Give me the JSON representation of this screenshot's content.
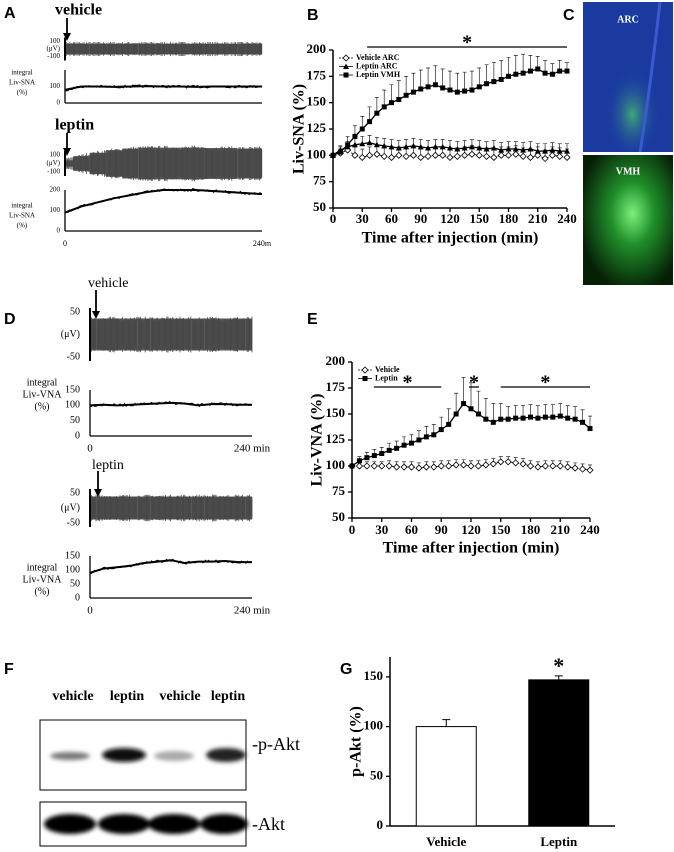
{
  "panel_labels": [
    "A",
    "B",
    "C",
    "D",
    "E",
    "F",
    "G"
  ],
  "trace_panels": [
    {
      "time": [
        0,
        20,
        40,
        60,
        80,
        100,
        120,
        140,
        160,
        180,
        200,
        220,
        240
      ],
      "traces": [
        {
          "label": "vehicle",
          "raw_ticks": [
            100,
            -100
          ],
          "raw_unit": "(μV)",
          "raw_envelope": [
            95,
            95,
            95,
            95,
            95,
            95,
            95,
            95,
            95,
            95,
            95,
            95,
            95
          ],
          "integral_label": [
            "integral",
            "Liv-SNA",
            "(%)"
          ],
          "integral_ylim": [
            0,
            200
          ],
          "integral_ticks": [
            100,
            0
          ],
          "integral_values": [
            80,
            100,
            100,
            98,
            100,
            102,
            100,
            100,
            98,
            100,
            100,
            100,
            100
          ]
        },
        {
          "label": "leptin",
          "raw_ticks": [
            100,
            -100
          ],
          "raw_unit": "(μV)",
          "raw_envelope": [
            60,
            110,
            150,
            180,
            200,
            210,
            210,
            210,
            210,
            205,
            205,
            200,
            200
          ],
          "integral_label": [
            "integral",
            "Liv-SNA",
            "(%)"
          ],
          "integral_ylim": [
            0,
            200
          ],
          "integral_ticks": [
            200,
            100,
            0
          ],
          "integral_values": [
            90,
            120,
            140,
            160,
            175,
            190,
            200,
            200,
            200,
            195,
            190,
            185,
            180
          ],
          "x_labels": [
            "0",
            "240m"
          ]
        }
      ]
    },
    {
      "time": [
        0,
        20,
        40,
        60,
        80,
        100,
        120,
        140,
        160,
        180,
        200,
        220,
        240
      ],
      "traces": [
        {
          "label": "vehicle",
          "raw_ticks": [
            50,
            -50
          ],
          "raw_unit": "(μV)",
          "raw_envelope": [
            40,
            40,
            40,
            40,
            40,
            40,
            40,
            40,
            40,
            40,
            40,
            40,
            40
          ],
          "integral_label": [
            "integral",
            "Liv-VNA",
            "(%)"
          ],
          "integral_ylim": [
            0,
            150
          ],
          "integral_ticks": [
            150,
            100,
            50,
            0
          ],
          "integral_values": [
            100,
            102,
            100,
            102,
            104,
            106,
            108,
            106,
            100,
            104,
            104,
            102,
            102
          ],
          "x_labels": [
            "0",
            "240 min"
          ]
        },
        {
          "label": "leptin",
          "raw_ticks": [
            50,
            -50
          ],
          "raw_unit": "(μV)",
          "raw_envelope": [
            45,
            45,
            45,
            45,
            45,
            45,
            45,
            45,
            45,
            45,
            45,
            45,
            45
          ],
          "integral_label": [
            "integral",
            "Liv-VNA",
            "(%)"
          ],
          "integral_ylim": [
            0,
            150
          ],
          "integral_ticks": [
            150,
            100,
            50,
            0
          ],
          "integral_values": [
            90,
            105,
            110,
            115,
            125,
            130,
            135,
            125,
            130,
            130,
            132,
            128,
            128
          ],
          "x_labels": [
            "0",
            "240 min"
          ]
        }
      ]
    }
  ],
  "image_panel": {
    "labels": [
      "ARC",
      "VMH"
    ]
  },
  "blot": {
    "lanes": [
      "vehicle",
      "leptin",
      "vehicle",
      "leptin"
    ],
    "bands": [
      "-p-Akt",
      "-Akt"
    ]
  },
  "chart_data": [
    {
      "type": "line",
      "ylabel": "Liv-SNA (%)",
      "xlabel": "Time after injection (min)",
      "x": [
        0,
        7.5,
        15,
        22.5,
        30,
        37.5,
        45,
        52.5,
        60,
        67.5,
        75,
        82.5,
        90,
        97.5,
        105,
        112.5,
        120,
        127.5,
        135,
        142.5,
        150,
        157.5,
        165,
        172.5,
        180,
        187.5,
        195,
        202.5,
        210,
        217.5,
        225,
        232.5,
        240
      ],
      "xlim": [
        0,
        240
      ],
      "xticks": [
        0,
        30,
        60,
        90,
        120,
        150,
        180,
        210,
        240
      ],
      "ylim": [
        50,
        200
      ],
      "yticks": [
        50,
        75,
        100,
        125,
        150,
        175,
        200
      ],
      "legend": "upper left",
      "series": [
        {
          "name": "Vehicle ARC",
          "color": "#000000",
          "marker": "open-diamond",
          "dashed": true,
          "values": [
            100,
            102,
            105,
            100,
            98,
            100,
            101,
            99,
            98,
            100,
            99,
            100,
            98,
            99,
            100,
            100,
            98,
            99,
            100,
            101,
            100,
            99,
            98,
            100,
            100,
            101,
            99,
            98,
            100,
            97,
            100,
            99,
            98
          ],
          "errors": [
            0,
            4,
            6,
            8,
            8,
            8,
            8,
            8,
            8,
            8,
            8,
            8,
            8,
            8,
            8,
            8,
            8,
            8,
            8,
            8,
            8,
            8,
            8,
            8,
            8,
            8,
            8,
            8,
            8,
            8,
            8,
            8,
            8
          ]
        },
        {
          "name": "Leptin ARC",
          "color": "#000000",
          "marker": "triangle",
          "dashed": false,
          "values": [
            100,
            105,
            108,
            110,
            111,
            112,
            110,
            109,
            108,
            107,
            108,
            109,
            108,
            107,
            108,
            108,
            107,
            106,
            107,
            108,
            107,
            106,
            107,
            105,
            106,
            106,
            105,
            106,
            104,
            104,
            105,
            104,
            104
          ],
          "errors": [
            0,
            4,
            5,
            6,
            7,
            7,
            7,
            7,
            7,
            7,
            7,
            7,
            7,
            7,
            7,
            7,
            7,
            7,
            7,
            7,
            7,
            7,
            7,
            7,
            7,
            7,
            7,
            7,
            7,
            7,
            7,
            7,
            7
          ]
        },
        {
          "name": "Leptin VMH",
          "color": "#000000",
          "marker": "square",
          "dashed": false,
          "values": [
            100,
            103,
            110,
            118,
            125,
            132,
            140,
            146,
            150,
            153,
            157,
            160,
            163,
            165,
            167,
            164,
            162,
            160,
            161,
            162,
            165,
            168,
            170,
            172,
            175,
            177,
            178,
            180,
            182,
            178,
            177,
            180,
            180
          ],
          "errors": [
            0,
            5,
            8,
            10,
            12,
            14,
            15,
            16,
            17,
            18,
            18,
            18,
            18,
            18,
            18,
            18,
            18,
            18,
            18,
            18,
            18,
            18,
            18,
            18,
            18,
            18,
            18,
            15,
            12,
            12,
            10,
            10,
            8
          ]
        }
      ],
      "significance": [
        {
          "from": 35,
          "to": 240,
          "label": "*"
        }
      ]
    },
    {
      "type": "line",
      "ylabel": "Liv-VNA (%)",
      "xlabel": "Time after injection (min)",
      "x": [
        0,
        7.5,
        15,
        22.5,
        30,
        37.5,
        45,
        52.5,
        60,
        67.5,
        75,
        82.5,
        90,
        97.5,
        105,
        112.5,
        120,
        127.5,
        135,
        142.5,
        150,
        157.5,
        165,
        172.5,
        180,
        187.5,
        195,
        202.5,
        210,
        217.5,
        225,
        232.5,
        240
      ],
      "xlim": [
        0,
        240
      ],
      "xticks": [
        0,
        30,
        60,
        90,
        120,
        150,
        180,
        210,
        240
      ],
      "ylim": [
        50,
        200
      ],
      "yticks": [
        50,
        75,
        100,
        125,
        150,
        175,
        200
      ],
      "legend": "upper left",
      "series": [
        {
          "name": "Vehicle",
          "color": "#000000",
          "marker": "open-diamond",
          "dashed": true,
          "values": [
            100,
            100,
            100,
            100,
            100,
            100,
            99,
            99,
            99,
            98,
            99,
            99,
            100,
            100,
            101,
            101,
            100,
            100,
            101,
            102,
            104,
            104,
            103,
            102,
            100,
            99,
            100,
            100,
            100,
            99,
            98,
            97,
            96
          ],
          "errors": [
            0,
            3,
            4,
            4,
            4,
            5,
            5,
            5,
            5,
            5,
            5,
            5,
            5,
            5,
            5,
            5,
            5,
            5,
            5,
            5,
            5,
            5,
            5,
            5,
            5,
            5,
            5,
            5,
            5,
            5,
            5,
            5,
            5
          ]
        },
        {
          "name": "Leptin",
          "color": "#000000",
          "marker": "square",
          "dashed": false,
          "values": [
            100,
            105,
            108,
            110,
            112,
            115,
            117,
            120,
            122,
            125,
            128,
            130,
            135,
            140,
            150,
            160,
            155,
            150,
            145,
            142,
            145,
            145,
            146,
            146,
            147,
            146,
            147,
            147,
            148,
            146,
            145,
            142,
            136
          ],
          "errors": [
            0,
            4,
            5,
            6,
            6,
            7,
            7,
            8,
            8,
            9,
            10,
            10,
            12,
            15,
            20,
            25,
            25,
            22,
            20,
            18,
            15,
            12,
            12,
            12,
            12,
            12,
            12,
            12,
            12,
            12,
            12,
            12,
            12
          ]
        }
      ],
      "significance": [
        {
          "from": 22,
          "to": 90,
          "label": "*"
        },
        {
          "from": 118,
          "to": 128,
          "label": "*"
        },
        {
          "from": 150,
          "to": 240,
          "label": "*"
        }
      ]
    },
    {
      "type": "bar",
      "ylabel": "p-Akt (%)",
      "categories": [
        "Vehicle",
        "Leptin"
      ],
      "values": [
        100,
        147
      ],
      "errors": [
        7,
        4
      ],
      "colors": [
        "#ffffff",
        "#000000"
      ],
      "ylim": [
        0,
        170
      ],
      "yticks": [
        0,
        50,
        100,
        150
      ],
      "annotations": [
        {
          "category": 1,
          "label": "*"
        }
      ]
    }
  ]
}
